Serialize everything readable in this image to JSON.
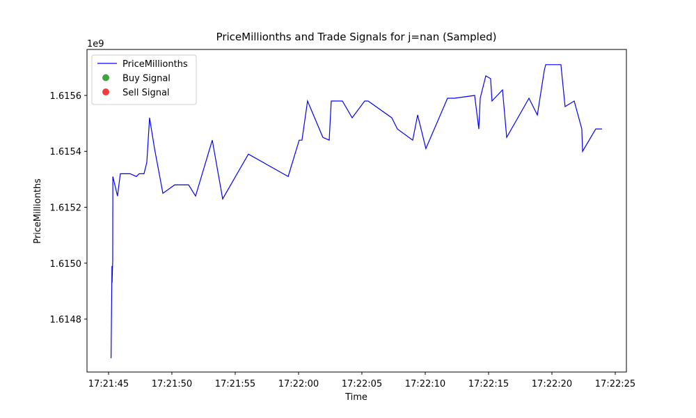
{
  "chart_data": {
    "type": "line",
    "title": "PriceMillionths and Trade Signals for j=nan (Sampled)",
    "x_label": "Time",
    "y_label": "PriceMillionths",
    "y_offset_label": "1e9",
    "legend_position": "upper left",
    "xlim": [
      62503.3,
      62545.88
    ],
    "ylim": [
      1614610700,
      1615764400
    ],
    "xticks": [
      {
        "value": 62505,
        "label": "17:21:45"
      },
      {
        "value": 62510,
        "label": "17:21:50"
      },
      {
        "value": 62515,
        "label": "17:21:55"
      },
      {
        "value": 62520,
        "label": "17:22:00"
      },
      {
        "value": 62525,
        "label": "17:22:05"
      },
      {
        "value": 62530,
        "label": "17:22:10"
      },
      {
        "value": 62535,
        "label": "17:22:15"
      },
      {
        "value": 62540,
        "label": "17:22:20"
      },
      {
        "value": 62545,
        "label": "17:22:25"
      }
    ],
    "yticks": [
      {
        "value": 1614800000,
        "label": "1.6148"
      },
      {
        "value": 1615000000,
        "label": "1.6150"
      },
      {
        "value": 1615200000,
        "label": "1.6152"
      },
      {
        "value": 1615400000,
        "label": "1.6154"
      },
      {
        "value": 1615600000,
        "label": "1.6156"
      }
    ],
    "series": [
      {
        "name": "PriceMillionths",
        "kind": "line",
        "color": "#0000ff",
        "x": [
          62505.2,
          62505.27,
          62505.28,
          62505.33,
          62505.34,
          62505.71,
          62505.93,
          62506.37,
          62506.7,
          62507.2,
          62507.42,
          62507.8,
          62508.02,
          62508.13,
          62508.24,
          62508.63,
          62509.29,
          62510.22,
          62511.32,
          62511.87,
          62513.19,
          62514.01,
          62516.04,
          62519.18,
          62520.05,
          62520.27,
          62520.71,
          62521.92,
          62522.42,
          62522.58,
          62523.46,
          62524.23,
          62525.22,
          62525.49,
          62527.36,
          62527.8,
          62529.01,
          62529.4,
          62530.05,
          62531.76,
          62532.31,
          62533.9,
          62534.23,
          62534.34,
          62534.78,
          62535.16,
          62535.27,
          62536.1,
          62536.43,
          62538.19,
          62538.85,
          62539.4,
          62539.51,
          62540.71,
          62541.04,
          62541.76,
          62542.36,
          62542.42,
          62543.46,
          62543.96
        ],
        "values": [
          1614660000,
          1614990000,
          1614930000,
          1615010000,
          1615310000,
          1615240000,
          1615320000,
          1615320000,
          1615320000,
          1615310000,
          1615320000,
          1615320000,
          1615360000,
          1615440000,
          1615520000,
          1615410000,
          1615250000,
          1615280000,
          1615280000,
          1615240000,
          1615440000,
          1615230000,
          1615390000,
          1615310000,
          1615440000,
          1615440000,
          1615580000,
          1615450000,
          1615440000,
          1615580000,
          1615580000,
          1615520000,
          1615580000,
          1615580000,
          1615520000,
          1615480000,
          1615440000,
          1615530000,
          1615410000,
          1615590000,
          1615590000,
          1615600000,
          1615480000,
          1615590000,
          1615670000,
          1615660000,
          1615580000,
          1615620000,
          1615450000,
          1615590000,
          1615530000,
          1615690000,
          1615710000,
          1615710000,
          1615560000,
          1615580000,
          1615480000,
          1615400000,
          1615480000,
          1615480000
        ]
      },
      {
        "name": "Buy Signal",
        "kind": "scatter",
        "color": "#3fa33f",
        "x": [],
        "values": []
      },
      {
        "name": "Sell Signal",
        "kind": "scatter",
        "color": "#f03c3c",
        "x": [],
        "values": []
      }
    ]
  }
}
